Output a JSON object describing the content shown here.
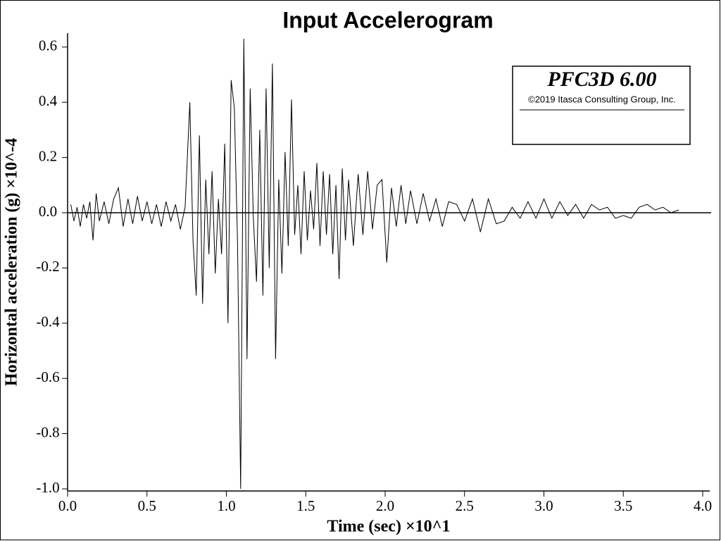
{
  "chart_data": {
    "type": "line",
    "title": "Input Accelerogram",
    "x_label": "Time (sec) ×10^1",
    "y_label": "Horizontal acceleration (g) ×10^-4",
    "annotations": [
      "PFC3D 6.00",
      "©2019 Itasca Consulting Group, Inc."
    ],
    "xlim": [
      0,
      4.05
    ],
    "ylim": [
      -1.0,
      0.65
    ],
    "xticks": [
      {
        "value": 0,
        "label": "0.0"
      },
      0.5,
      {
        "value": 1,
        "label": "1.0"
      },
      1.5,
      {
        "value": 2,
        "label": "2.0"
      },
      2.5,
      {
        "value": 3,
        "label": "3.0"
      },
      3.5,
      {
        "value": 4,
        "label": "4.0"
      }
    ],
    "yticks": [
      0.6,
      0.4,
      0.2,
      {
        "value": 0,
        "label": "0.0"
      },
      -0.2,
      -0.4,
      -0.6,
      -0.8,
      {
        "value": -1,
        "label": "-1.0"
      }
    ],
    "grid": false,
    "series": [
      {
        "color": "#000000",
        "x": [
          0.02,
          0.04,
          0.06,
          0.08,
          0.1,
          0.12,
          0.14,
          0.16,
          0.18,
          0.2,
          0.23,
          0.26,
          0.29,
          0.32,
          0.35,
          0.38,
          0.41,
          0.44,
          0.47,
          0.5,
          0.53,
          0.56,
          0.59,
          0.62,
          0.65,
          0.68,
          0.71,
          0.74,
          0.77,
          0.79,
          0.81,
          0.83,
          0.85,
          0.87,
          0.89,
          0.91,
          0.93,
          0.95,
          0.97,
          0.99,
          1.01,
          1.03,
          1.05,
          1.07,
          1.09,
          1.11,
          1.13,
          1.15,
          1.17,
          1.19,
          1.21,
          1.23,
          1.25,
          1.27,
          1.29,
          1.31,
          1.33,
          1.35,
          1.37,
          1.39,
          1.41,
          1.43,
          1.45,
          1.47,
          1.49,
          1.51,
          1.53,
          1.55,
          1.57,
          1.59,
          1.61,
          1.63,
          1.65,
          1.67,
          1.69,
          1.71,
          1.73,
          1.75,
          1.77,
          1.8,
          1.83,
          1.86,
          1.89,
          1.92,
          1.95,
          1.98,
          2.01,
          2.04,
          2.07,
          2.1,
          2.13,
          2.16,
          2.2,
          2.24,
          2.28,
          2.32,
          2.36,
          2.4,
          2.45,
          2.5,
          2.55,
          2.6,
          2.65,
          2.7,
          2.75,
          2.8,
          2.85,
          2.9,
          2.95,
          3.0,
          3.05,
          3.1,
          3.15,
          3.2,
          3.25,
          3.3,
          3.35,
          3.4,
          3.45,
          3.5,
          3.55,
          3.6,
          3.65,
          3.7,
          3.75,
          3.8,
          3.85
        ],
        "values": [
          0.03,
          -0.03,
          0.02,
          -0.05,
          0.03,
          -0.02,
          0.04,
          -0.1,
          0.07,
          -0.03,
          0.04,
          -0.04,
          0.05,
          0.09,
          -0.05,
          0.05,
          -0.04,
          0.06,
          -0.03,
          0.04,
          -0.04,
          0.03,
          -0.05,
          0.04,
          -0.03,
          0.03,
          -0.06,
          0.02,
          0.4,
          -0.1,
          -0.3,
          0.28,
          -0.33,
          0.12,
          -0.15,
          0.15,
          -0.22,
          0.05,
          -0.15,
          0.25,
          -0.4,
          0.48,
          0.38,
          -0.1,
          -1.0,
          0.63,
          -0.53,
          0.45,
          -0.02,
          -0.25,
          0.3,
          -0.3,
          0.45,
          -0.2,
          0.54,
          -0.53,
          0.12,
          -0.22,
          0.22,
          -0.12,
          0.41,
          -0.08,
          0.1,
          -0.15,
          0.15,
          -0.1,
          0.08,
          -0.06,
          0.18,
          -0.12,
          0.15,
          -0.08,
          0.14,
          -0.15,
          0.1,
          -0.24,
          0.16,
          -0.1,
          0.12,
          -0.12,
          0.14,
          -0.08,
          0.15,
          -0.06,
          0.1,
          0.12,
          -0.18,
          0.09,
          -0.05,
          0.1,
          -0.04,
          0.08,
          -0.04,
          0.07,
          -0.03,
          0.05,
          -0.05,
          0.04,
          0.03,
          -0.03,
          0.05,
          -0.07,
          0.05,
          -0.04,
          -0.03,
          0.02,
          -0.02,
          0.04,
          -0.02,
          0.05,
          -0.02,
          0.04,
          -0.01,
          0.03,
          -0.02,
          0.03,
          0.01,
          0.02,
          -0.02,
          -0.01,
          -0.02,
          0.02,
          0.03,
          0.01,
          0.02,
          0.0,
          0.01
        ]
      }
    ]
  }
}
